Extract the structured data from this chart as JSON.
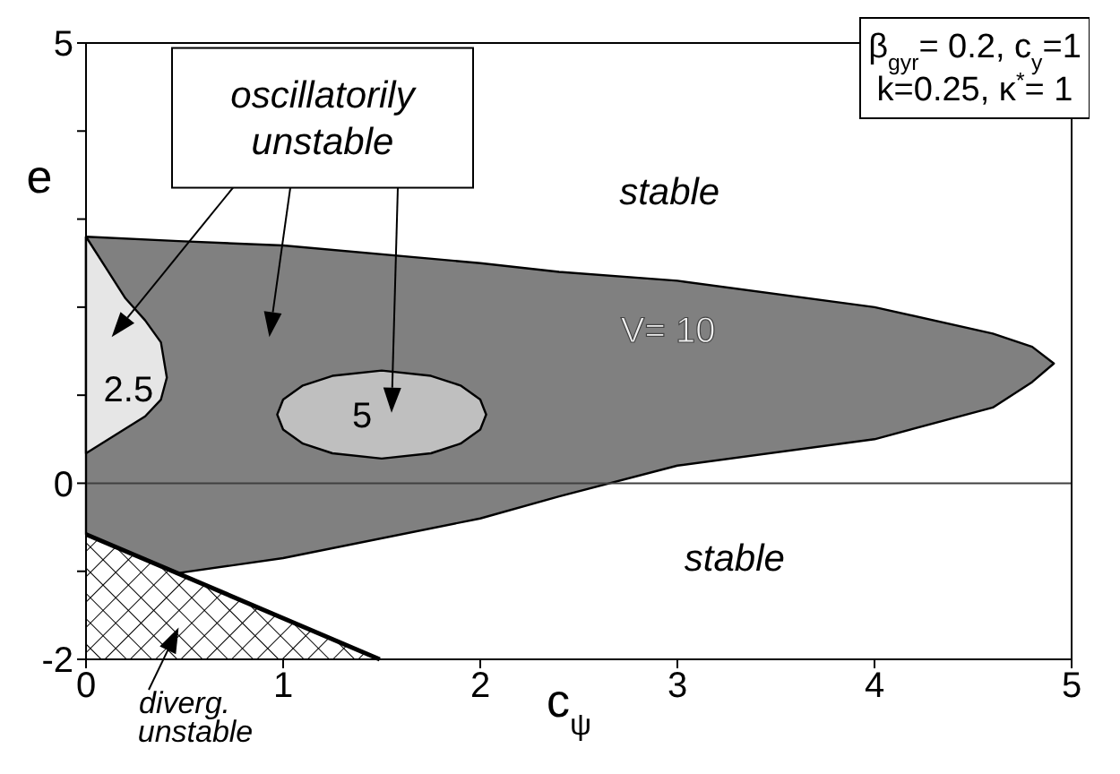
{
  "chart_data": {
    "type": "area",
    "xlabel": "c$_{ψ}$",
    "ylabel": "e",
    "xlim": [
      0,
      5
    ],
    "xticks": [
      0,
      1,
      2,
      3,
      4,
      5
    ],
    "ylim": [
      -2,
      5
    ],
    "yticks": [
      -2,
      {
        "value": -1,
        "label": null
      },
      0,
      {
        "value": 1,
        "label": null
      },
      {
        "value": 2,
        "label": null
      },
      {
        "value": 3,
        "label": null
      },
      {
        "value": 4,
        "label": null
      },
      5
    ],
    "series": [
      {
        "name": "V= 10",
        "color": "#808080",
        "x": [
          0,
          0.47,
          1,
          2,
          2.4,
          3,
          4,
          4.6,
          4.8,
          4.91,
          4.8,
          4.6,
          4,
          3,
          2.4,
          2,
          1,
          0.47,
          0
        ],
        "values": [
          2.8,
          2.75,
          2.7,
          2.5,
          2.4,
          2.3,
          2.0,
          1.7,
          1.55,
          1.36,
          1.15,
          0.86,
          0.5,
          0.2,
          -0.15,
          -0.4,
          -0.85,
          -1.02,
          -0.58
        ]
      },
      {
        "name": "2.5",
        "color": "#e6e6e6",
        "x": [
          0,
          0.1,
          0.2,
          0.3,
          0.38,
          0.41,
          0.38,
          0.3,
          0.2,
          0.1,
          0
        ],
        "values": [
          2.8,
          2.45,
          2.1,
          1.85,
          1.6,
          1.2,
          0.95,
          0.76,
          0.62,
          0.48,
          0.34
        ]
      },
      {
        "name": "5",
        "color": "#bfbfbf",
        "x": [
          0.97,
          1.0,
          1.1,
          1.25,
          1.5,
          1.75,
          1.9,
          2.0,
          2.03,
          2.0,
          1.9,
          1.75,
          1.5,
          1.25,
          1.1,
          1.0
        ],
        "values": [
          0.78,
          0.95,
          1.11,
          1.22,
          1.28,
          1.22,
          1.11,
          0.95,
          0.78,
          0.61,
          0.45,
          0.34,
          0.28,
          0.34,
          0.45,
          0.61
        ]
      },
      {
        "color": "#000000",
        "x": [
          0,
          0.47,
          1.49,
          0
        ],
        "values": [
          -0.58,
          -1.02,
          -2,
          -2
        ]
      }
    ],
    "ref_lines": [
      {
        "axis": "y",
        "value": 0,
        "color": "#404040"
      }
    ],
    "annotations": [
      "stable",
      "stable",
      "oscillatorily unstable",
      "diverg. unstable",
      "β$_{gyr}$= 0.2, c$_{y}$=1",
      "k=0.25, κ$^{*}$= 1"
    ]
  }
}
